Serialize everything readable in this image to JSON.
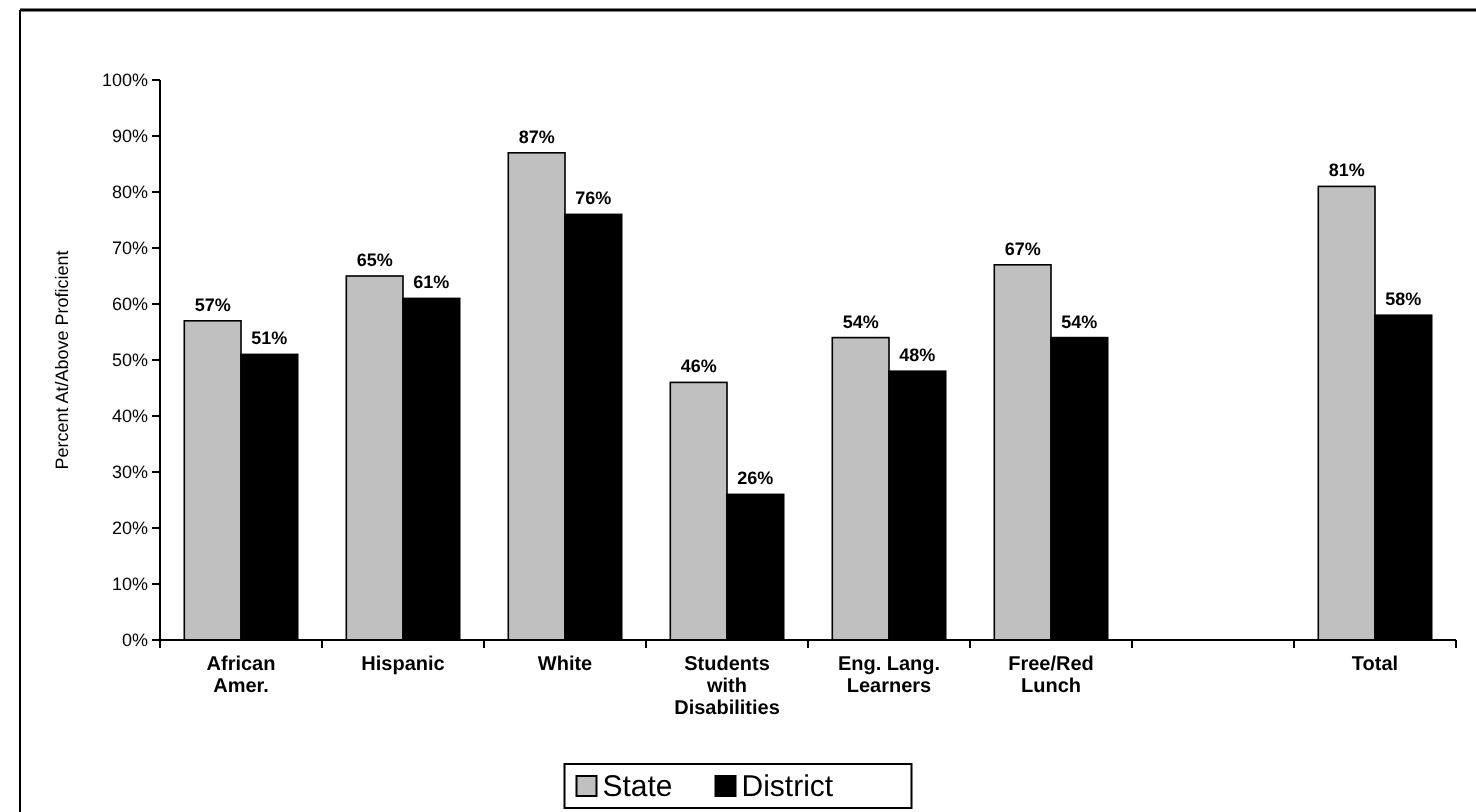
{
  "chart_data": {
    "type": "bar",
    "ylabel": "Percent At/Above Proficient",
    "categories": [
      "African Amer.",
      "Hispanic",
      "White",
      "Students with Disabilities",
      "Eng. Lang. Learners",
      "Free/Red Lunch",
      null,
      "Total"
    ],
    "series": [
      {
        "name": "State",
        "color": "#c0c0c0",
        "values": [
          57,
          65,
          87,
          46,
          54,
          67,
          null,
          81
        ],
        "value_labels": [
          "57%",
          "65%",
          "87%",
          "46%",
          "54%",
          "67%",
          null,
          "81%"
        ]
      },
      {
        "name": "District",
        "color": "#000000",
        "values": [
          51,
          61,
          76,
          26,
          48,
          54,
          null,
          58
        ],
        "value_labels": [
          "51%",
          "61%",
          "76%",
          "26%",
          "48%",
          "54%",
          null,
          "58%"
        ]
      }
    ],
    "ylim": [
      0,
      100
    ],
    "yticks": [
      {
        "value": 0,
        "label": "0%"
      },
      {
        "value": 10,
        "label": "10%"
      },
      {
        "value": 20,
        "label": "20%"
      },
      {
        "value": 30,
        "label": "30%"
      },
      {
        "value": 40,
        "label": "40%"
      },
      {
        "value": 50,
        "label": "50%"
      },
      {
        "value": 60,
        "label": "60%"
      },
      {
        "value": 70,
        "label": "70%"
      },
      {
        "value": 80,
        "label": "80%"
      },
      {
        "value": 90,
        "label": "90%"
      },
      {
        "value": 100,
        "label": "100%"
      }
    ],
    "grid": false,
    "legend": "bottom"
  }
}
